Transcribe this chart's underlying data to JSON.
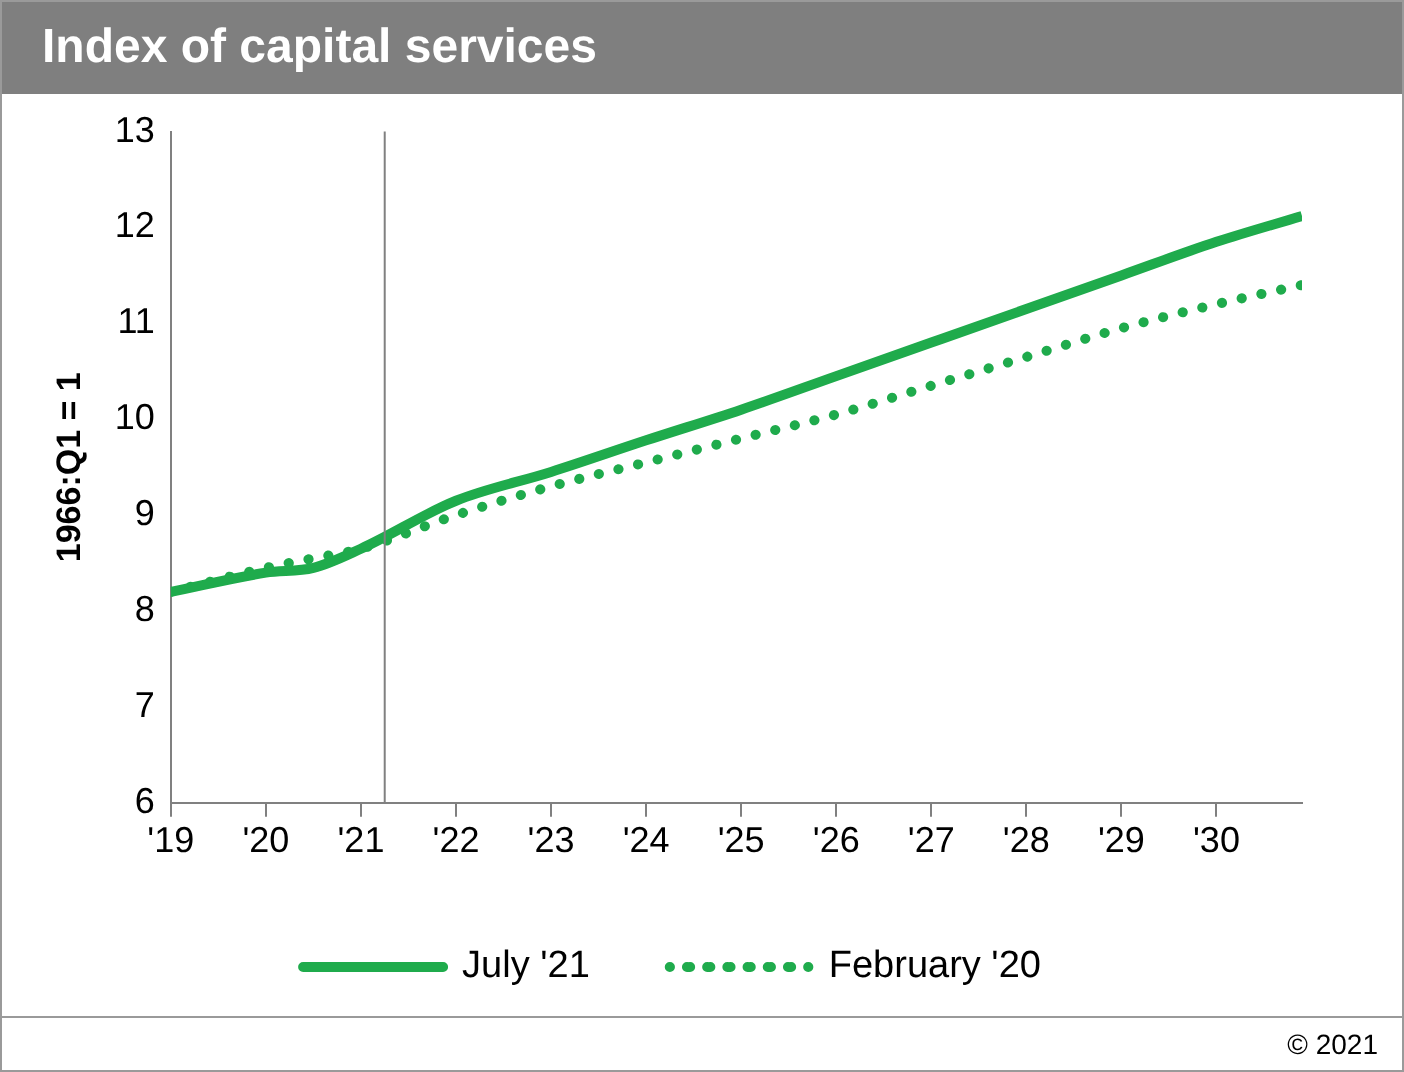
{
  "chart_data": {
    "type": "line",
    "title": "Index of capital services",
    "ylabel": "1966:Q1 = 1",
    "xlim": [
      2019,
      2030.9
    ],
    "xticks": [
      {
        "value": 2019,
        "label": "'19"
      },
      {
        "value": 2020,
        "label": "'20"
      },
      {
        "value": 2021,
        "label": "'21"
      },
      {
        "value": 2022,
        "label": "'22"
      },
      {
        "value": 2023,
        "label": "'23"
      },
      {
        "value": 2024,
        "label": "'24"
      },
      {
        "value": 2025,
        "label": "'25"
      },
      {
        "value": 2026,
        "label": "'26"
      },
      {
        "value": 2027,
        "label": "'27"
      },
      {
        "value": 2028,
        "label": "'28"
      },
      {
        "value": 2029,
        "label": "'29"
      },
      {
        "value": 2030,
        "label": "'30"
      }
    ],
    "ylim": [
      6,
      13
    ],
    "yticks": [
      6,
      7,
      8,
      9,
      10,
      11,
      12,
      13
    ],
    "grid": false,
    "legend": "bottom",
    "marker": "none",
    "x": [
      2019,
      2020,
      2020.5,
      2021,
      2022,
      2023,
      2024,
      2025,
      2026,
      2027,
      2028,
      2029,
      2030,
      2030.9
    ],
    "series": [
      {
        "name": "July '21",
        "color": "#1fab4c",
        "line_style": "solid",
        "values": [
          8.2,
          8.4,
          8.45,
          8.65,
          9.15,
          9.45,
          9.78,
          10.1,
          10.45,
          10.8,
          11.15,
          11.5,
          11.85,
          12.12
        ]
      },
      {
        "name": "February '20",
        "color": "#1fab4c",
        "line_style": "dotted",
        "values": [
          8.2,
          8.45,
          8.55,
          8.65,
          9.0,
          9.3,
          9.55,
          9.8,
          10.05,
          10.35,
          10.65,
          10.95,
          11.2,
          11.4
        ]
      }
    ],
    "ref_lines": [
      {
        "axis": "x",
        "value": 2021.25,
        "color": "#808080"
      }
    ],
    "annotations": [
      "© 2021"
    ]
  }
}
